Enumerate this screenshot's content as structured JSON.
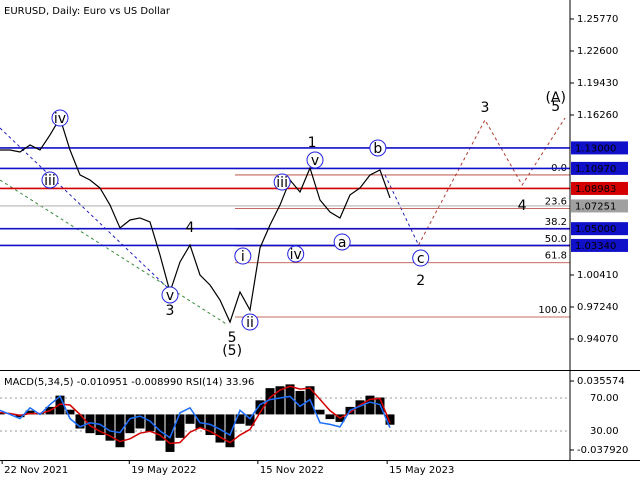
{
  "chart_data": {
    "type": "line",
    "title": "EURUSD, Daily:  Euro vs US Dollar",
    "color": "#000000",
    "xlim": [
      "2021-11-19",
      "2024-01-26"
    ],
    "ylim": [
      0.91,
      1.2765
    ],
    "xticks": [
      {
        "value": "2021-11-22",
        "label": "22 Nov 2021"
      },
      {
        "value": "2022-05-19",
        "label": "19 May 2022"
      },
      {
        "value": "2022-11-15",
        "label": "15 Nov 2022"
      },
      {
        "value": "2023-05-15",
        "label": "15 May 2023"
      }
    ],
    "yticks": [
      {
        "value": 1.2577,
        "label": "1.25770"
      },
      {
        "value": 1.226,
        "label": "1.22600"
      },
      {
        "value": 1.1943,
        "label": "1.19430"
      },
      {
        "value": 1.1626,
        "label": "1.16260"
      },
      {
        "value": 1.0041,
        "label": "1.00410"
      },
      {
        "value": 0.9724,
        "label": "0.97240"
      },
      {
        "value": 0.9407,
        "label": "0.94070"
      }
    ],
    "x": [
      "2021-11-19",
      "2021-12-03",
      "2021-12-17",
      "2021-12-31",
      "2022-01-14",
      "2022-01-28",
      "2022-02-11",
      "2022-02-25",
      "2022-03-11",
      "2022-03-25",
      "2022-04-08",
      "2022-04-22",
      "2022-05-06",
      "2022-05-20",
      "2022-06-03",
      "2022-06-17",
      "2022-07-01",
      "2022-07-15",
      "2022-07-29",
      "2022-08-12",
      "2022-08-26",
      "2022-09-09",
      "2022-09-23",
      "2022-10-07",
      "2022-10-21",
      "2022-11-04",
      "2022-11-18",
      "2022-12-02",
      "2022-12-16",
      "2022-12-30",
      "2023-01-13",
      "2023-01-27",
      "2023-02-10",
      "2023-02-24",
      "2023-03-10",
      "2023-03-24",
      "2023-04-07",
      "2023-04-21",
      "2023-05-05",
      "2023-05-19"
    ],
    "values": [
      1.1279,
      1.1279,
      1.126,
      1.1329,
      1.1279,
      1.1428,
      1.1596,
      1.1279,
      1.1032,
      1.0982,
      1.0903,
      1.0734,
      1.0507,
      1.0586,
      1.0606,
      1.0566,
      1.0239,
      0.9873,
      1.017,
      1.0338,
      1.0041,
      0.9942,
      0.9793,
      0.9575,
      0.9873,
      0.9694,
      1.0309,
      1.0536,
      1.0734,
      1.0982,
      1.0863,
      1.1101,
      1.0784,
      1.0665,
      1.0606,
      1.0834,
      1.0903,
      1.1032,
      1.1081,
      1.0804
    ],
    "levels": [
      {
        "value": 1.13,
        "label": "1.13000",
        "color": "#1010c8"
      },
      {
        "value": 1.1097,
        "label": "1.10970",
        "color": "#1010c8"
      },
      {
        "value": 1.08983,
        "label": "1.08983",
        "color": "#d40000"
      },
      {
        "value": 1.07251,
        "label": "1.07251",
        "color": "#a0a0a0"
      },
      {
        "value": 1.05,
        "label": "1.05000",
        "color": "#1010c8"
      },
      {
        "value": 1.0334,
        "label": "1.03340",
        "color": "#1010c8"
      }
    ],
    "fibonacci": {
      "start": "2022-10-14",
      "price_0": 1.1032,
      "price_100": 0.9625,
      "color": "#b03a2e",
      "levels": [
        {
          "value": 0,
          "label": "0.0"
        },
        23.6,
        38.2,
        {
          "value": 50,
          "label": "50.0"
        },
        61.8,
        {
          "value": 100,
          "label": "100.0"
        }
      ]
    },
    "trendlines": [
      {
        "color": "#2020c0",
        "x": [
          "2021-11-19",
          "2022-07-15"
        ],
        "y": [
          1.1497,
          0.9892
        ]
      },
      {
        "color": "#3a8a3a",
        "x": [
          "2021-11-19",
          "2022-10-04"
        ],
        "y": [
          1.0982,
          0.9546
        ]
      },
      {
        "color": "#2020c0",
        "x": [
          "2023-05-12",
          "2023-06-28"
        ],
        "y": [
          1.1032,
          1.0338
        ]
      },
      {
        "color": "#b03a2e",
        "x": [
          "2023-06-28",
          "2023-09-29",
          "2023-11-20",
          "2024-01-19"
        ],
        "y": [
          1.0338,
          1.1577,
          1.0933,
          1.1596
        ]
      }
    ],
    "waves": [
      {
        "text": "iv",
        "x": "2022-02-11",
        "y": 1.1596,
        "color": "#2222dd",
        "circle": true
      },
      {
        "text": "iii",
        "x": "2022-01-28",
        "y": 1.0982,
        "color": "#2222dd",
        "circle": true
      },
      {
        "text": "v",
        "x": "2022-07-15",
        "y": 0.9843,
        "color": "#2222dd",
        "circle": true
      },
      {
        "text": "3",
        "x": "2022-07-15",
        "y": 0.9694,
        "color": "#a03020",
        "circle": false
      },
      {
        "text": "4",
        "x": "2022-08-12",
        "y": 1.0517,
        "color": "#a03020",
        "circle": false
      },
      {
        "text": "5",
        "x": "2022-10-10",
        "y": 0.9427,
        "color": "#a03020",
        "circle": false
      },
      {
        "text": "(5)",
        "x": "2022-10-10",
        "y": 0.9298,
        "color": "#3a8a3a",
        "circle": false
      },
      {
        "text": "i",
        "x": "2022-10-25",
        "y": 1.0229,
        "color": "#2222dd",
        "circle": true
      },
      {
        "text": "ii",
        "x": "2022-11-04",
        "y": 0.9575,
        "color": "#2222dd",
        "circle": true
      },
      {
        "text": "iii",
        "x": "2022-12-19",
        "y": 1.0962,
        "color": "#2222dd",
        "circle": true
      },
      {
        "text": "iv",
        "x": "2023-01-07",
        "y": 1.0249,
        "color": "#2222dd",
        "circle": true
      },
      {
        "text": "v",
        "x": "2023-02-03",
        "y": 1.118,
        "color": "#2222dd",
        "circle": true
      },
      {
        "text": "1",
        "x": "2023-01-30",
        "y": 1.1359,
        "color": "#a03020",
        "circle": false
      },
      {
        "text": "a",
        "x": "2023-03-13",
        "y": 1.0368,
        "color": "#2222dd",
        "circle": true
      },
      {
        "text": "b",
        "x": "2023-05-02",
        "y": 1.1299,
        "color": "#2222dd",
        "circle": true
      },
      {
        "text": "c",
        "x": "2023-07-01",
        "y": 1.0209,
        "color": "#2222dd",
        "circle": true
      },
      {
        "text": "2",
        "x": "2023-07-01",
        "y": 0.9992,
        "color": "#a03020",
        "circle": false
      },
      {
        "text": "3",
        "x": "2023-09-29",
        "y": 1.1705,
        "color": "#a03020",
        "circle": false
      },
      {
        "text": "4",
        "x": "2023-11-20",
        "y": 1.0734,
        "color": "#a03020",
        "circle": false
      },
      {
        "text": "5",
        "x": "2024-01-06",
        "y": 1.1715,
        "color": "#a03020",
        "circle": false
      },
      {
        "text": "(A)",
        "x": "2024-01-06",
        "y": 1.1804,
        "color": "#3a8a3a",
        "circle": false
      }
    ],
    "indicator": {
      "title": "MACD(5,34,5) -0.010951 -0.008990 RSI(14) 33.96",
      "macd_lim": [
        -0.0486,
        0.0452
      ],
      "rsi_lim": [
        -5.2,
        101.5
      ],
      "macd_ticks": [
        0.035574,
        {
          "value": -0.03792,
          "label": "-0.037920"
        }
      ],
      "rsi_ticks": [
        {
          "value": 70,
          "label": "70.00"
        },
        {
          "value": 30,
          "label": "30.00"
        }
      ],
      "macd": [
        0.002,
        0,
        -0.003,
        0.004,
        0.001,
        0.008,
        0.02,
        0.005,
        -0.015,
        -0.02,
        -0.022,
        -0.028,
        -0.035,
        -0.02,
        -0.015,
        -0.018,
        -0.028,
        -0.04,
        -0.025,
        -0.01,
        -0.015,
        -0.022,
        -0.03,
        -0.035,
        -0.01,
        -0.012,
        0.015,
        0.028,
        0.03,
        0.032,
        0.025,
        0.03,
        0.005,
        -0.005,
        -0.008,
        0.008,
        0.015,
        0.02,
        0.018,
        -0.011
      ],
      "signal": [
        0.002,
        0.001,
        -0.001,
        0.001,
        0.001,
        0.004,
        0.011,
        0.01,
        0,
        -0.012,
        -0.018,
        -0.023,
        -0.029,
        -0.026,
        -0.02,
        -0.018,
        -0.022,
        -0.031,
        -0.03,
        -0.019,
        -0.014,
        -0.018,
        -0.024,
        -0.03,
        -0.022,
        -0.016,
        0.002,
        0.018,
        0.026,
        0.03,
        0.027,
        0.028,
        0.016,
        0.004,
        -0.004,
        0.002,
        0.01,
        0.016,
        0.017,
        -0.009
      ],
      "rsi": [
        55,
        50,
        45,
        58,
        50,
        62,
        72,
        45,
        35,
        40,
        38,
        30,
        28,
        45,
        48,
        42,
        30,
        22,
        52,
        58,
        40,
        38,
        32,
        25,
        55,
        45,
        62,
        68,
        70,
        72,
        60,
        68,
        40,
        38,
        35,
        55,
        60,
        65,
        62,
        34
      ],
      "macd_color": "#000000",
      "signal_color": "#d40000",
      "rsi_color": "#1e6fff"
    }
  }
}
